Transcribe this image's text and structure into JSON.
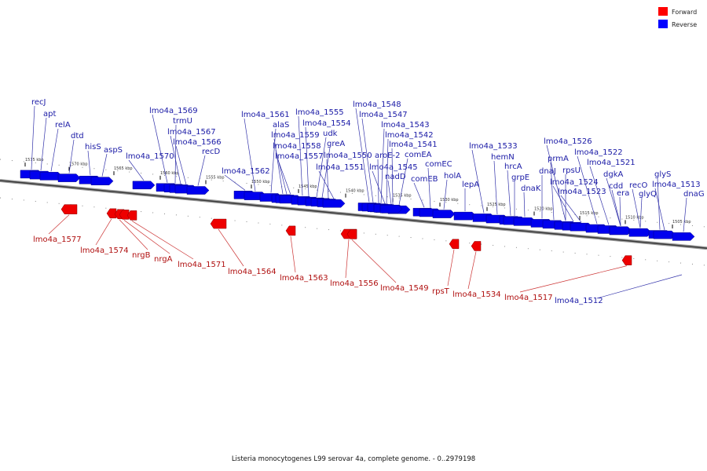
{
  "legend": [
    {
      "label": "Forward",
      "color": "#ff0000"
    },
    {
      "label": "Reverse",
      "color": "#0000ff"
    }
  ],
  "caption": "Listeria monocytogenes L99 serovar 4a, complete genome. - 0..2979198",
  "tick_labels": [
    "1575 kbp",
    "1570 kbp",
    "1565 kbp",
    "1560 kbp",
    "1555 kbp",
    "1550 kbp",
    "1545 kbp",
    "1540 kbp",
    "1535 kbp",
    "1530 kbp",
    "1525 kbp",
    "1520 kbp",
    "1515 kbp",
    "1510 kbp",
    "1505 kbp"
  ],
  "reverse_genes": [
    "recJ",
    "apt",
    "relA",
    "dtd",
    "hisS",
    "aspS",
    "lmo4a_1570",
    "lmo4a_1569",
    "trmU",
    "lmo4a_1567",
    "lmo4a_1566",
    "recD",
    "lmo4a_1562",
    "lmo4a_1561",
    "alaS",
    "lmo4a_1559",
    "lmo4a_1558",
    "lmo4a_1557",
    "lmo4a_1555",
    "lmo4a_1554",
    "udk",
    "greA",
    "lmo4a_1550",
    "lmo4a_1551",
    "lmo4a_1548",
    "lmo4a_1547",
    "lmo4a_1543",
    "lmo4a_1542",
    "lmo4a_1541",
    "comEA",
    "aroE-2",
    "lmo4a_1545",
    "nadD",
    "comEB",
    "comEC",
    "holA",
    "lepA",
    "lmo4a_1533",
    "hemN",
    "hrcA",
    "grpE",
    "dnaK",
    "dnaJ",
    "prmA",
    "lmo4a_1526",
    "rpsU",
    "lmo4a_1524",
    "lmo4a_1523",
    "lmo4a_1522",
    "lmo4a_1521",
    "dgkA",
    "cdd",
    "era",
    "recO",
    "glyQ",
    "glyS",
    "lmo4a_1513",
    "dnaG",
    "lmo4a_1512"
  ],
  "forward_genes": [
    "lmo4a_1577",
    "lmo4a_1574",
    "nrgB",
    "nrgA",
    "lmo4a_1571",
    "lmo4a_1564",
    "lmo4a_1563",
    "lmo4a_1556",
    "lmo4a_1549",
    "rpsT",
    "lmo4a_1534",
    "lmo4a_1517"
  ]
}
